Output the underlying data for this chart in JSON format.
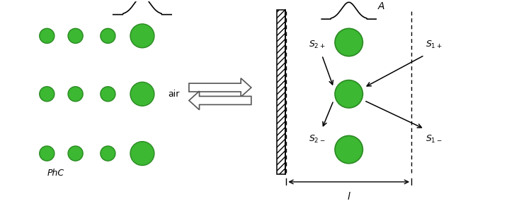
{
  "green_fill": "#3cb832",
  "green_edge": "#2a8a22",
  "bg_color": "#ffffff",
  "small_r": 0.115,
  "large_r": 0.185,
  "phc_label": "PhC",
  "air_label": "air",
  "A_label": "A",
  "l_label": "l",
  "figsize": [
    7.5,
    2.85
  ],
  "dpi": 100,
  "xlim": [
    0,
    7.5
  ],
  "ylim": [
    0,
    2.85
  ]
}
